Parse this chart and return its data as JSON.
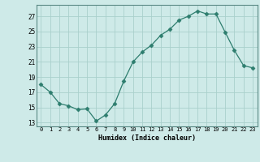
{
  "x": [
    0,
    1,
    2,
    3,
    4,
    5,
    6,
    7,
    8,
    9,
    10,
    11,
    12,
    13,
    14,
    15,
    16,
    17,
    18,
    19,
    20,
    21,
    22,
    23
  ],
  "y": [
    18.0,
    17.0,
    15.5,
    15.2,
    14.7,
    14.8,
    13.2,
    14.0,
    15.5,
    18.5,
    21.0,
    22.3,
    23.2,
    24.5,
    25.3,
    26.5,
    27.0,
    27.7,
    27.3,
    27.3,
    24.9,
    22.5,
    20.5,
    20.2
  ],
  "line_color": "#2d7d6e",
  "marker": "D",
  "marker_size": 2.5,
  "bg_color": "#ceeae8",
  "grid_color": "#aad0cc",
  "xlabel": "Humidex (Indice chaleur)",
  "yticks": [
    13,
    15,
    17,
    19,
    21,
    23,
    25,
    27
  ],
  "xticks": [
    0,
    1,
    2,
    3,
    4,
    5,
    6,
    7,
    8,
    9,
    10,
    11,
    12,
    13,
    14,
    15,
    16,
    17,
    18,
    19,
    20,
    21,
    22,
    23
  ],
  "ylim": [
    12.5,
    28.5
  ],
  "xlim": [
    -0.5,
    23.5
  ]
}
